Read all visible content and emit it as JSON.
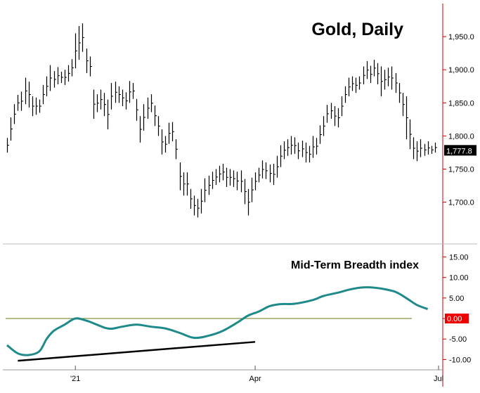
{
  "colors": {
    "frame": "#cc0000",
    "price_bars": "#000000",
    "breadth_line": "#1e8a8a",
    "zero_line": "#6b7a1a",
    "trendline": "#000000",
    "last_price_badge_bg": "#000000",
    "last_price_badge_fg": "#ffffff",
    "zero_badge_bg": "#ee0000",
    "zero_badge_fg": "#ffffff",
    "axis_text": "#000000"
  },
  "chart_data": [
    {
      "type": "ohlc",
      "title": "Gold, Daily",
      "xlabel": "",
      "ylabel": "",
      "x_range": [
        0,
        120
      ],
      "ylim": [
        1638,
        2000
      ],
      "yticks": [
        1700,
        1750,
        1800,
        1850,
        1900,
        1950
      ],
      "ytick_labels": [
        "1,700.0",
        "1,750.0",
        "1,800.0",
        "1,850.0",
        "1,900.0",
        "1,950.0"
      ],
      "last_value_label": "1,777.8",
      "last_value": 1777.8,
      "series": [
        {
          "values": [
            {
              "x": 0,
              "h": 1797,
              "l": 1775
            },
            {
              "x": 1,
              "h": 1828,
              "l": 1793
            },
            {
              "x": 2,
              "h": 1848,
              "l": 1818
            },
            {
              "x": 3,
              "h": 1862,
              "l": 1838
            },
            {
              "x": 4,
              "h": 1867,
              "l": 1838
            },
            {
              "x": 5,
              "h": 1888,
              "l": 1848
            },
            {
              "x": 6,
              "h": 1882,
              "l": 1843
            },
            {
              "x": 7,
              "h": 1860,
              "l": 1830
            },
            {
              "x": 8,
              "h": 1858,
              "l": 1832
            },
            {
              "x": 9,
              "h": 1855,
              "l": 1835
            },
            {
              "x": 10,
              "h": 1877,
              "l": 1848
            },
            {
              "x": 11,
              "h": 1890,
              "l": 1860
            },
            {
              "x": 12,
              "h": 1907,
              "l": 1868
            },
            {
              "x": 13,
              "h": 1898,
              "l": 1873
            },
            {
              "x": 14,
              "h": 1904,
              "l": 1878
            },
            {
              "x": 15,
              "h": 1897,
              "l": 1880
            },
            {
              "x": 16,
              "h": 1900,
              "l": 1877
            },
            {
              "x": 17,
              "h": 1907,
              "l": 1882
            },
            {
              "x": 18,
              "h": 1916,
              "l": 1890
            },
            {
              "x": 19,
              "h": 1955,
              "l": 1902
            },
            {
              "x": 20,
              "h": 1966,
              "l": 1915
            },
            {
              "x": 21,
              "h": 1970,
              "l": 1927
            },
            {
              "x": 22,
              "h": 1932,
              "l": 1895
            },
            {
              "x": 23,
              "h": 1920,
              "l": 1890
            },
            {
              "x": 24,
              "h": 1870,
              "l": 1826
            },
            {
              "x": 25,
              "h": 1863,
              "l": 1836
            },
            {
              "x": 26,
              "h": 1870,
              "l": 1840
            },
            {
              "x": 27,
              "h": 1865,
              "l": 1830
            },
            {
              "x": 28,
              "h": 1855,
              "l": 1810
            },
            {
              "x": 29,
              "h": 1880,
              "l": 1840
            },
            {
              "x": 30,
              "h": 1882,
              "l": 1850
            },
            {
              "x": 31,
              "h": 1875,
              "l": 1850
            },
            {
              "x": 32,
              "h": 1870,
              "l": 1845
            },
            {
              "x": 33,
              "h": 1866,
              "l": 1840
            },
            {
              "x": 34,
              "h": 1883,
              "l": 1850
            },
            {
              "x": 35,
              "h": 1880,
              "l": 1856
            },
            {
              "x": 36,
              "h": 1856,
              "l": 1823
            },
            {
              "x": 37,
              "h": 1830,
              "l": 1790
            },
            {
              "x": 38,
              "h": 1848,
              "l": 1808
            },
            {
              "x": 39,
              "h": 1858,
              "l": 1826
            },
            {
              "x": 40,
              "h": 1863,
              "l": 1836
            },
            {
              "x": 41,
              "h": 1846,
              "l": 1815
            },
            {
              "x": 42,
              "h": 1830,
              "l": 1800
            },
            {
              "x": 43,
              "h": 1810,
              "l": 1772
            },
            {
              "x": 44,
              "h": 1800,
              "l": 1775
            },
            {
              "x": 45,
              "h": 1820,
              "l": 1788
            },
            {
              "x": 46,
              "h": 1821,
              "l": 1792
            },
            {
              "x": 47,
              "h": 1795,
              "l": 1765
            },
            {
              "x": 48,
              "h": 1760,
              "l": 1718
            },
            {
              "x": 49,
              "h": 1745,
              "l": 1710
            },
            {
              "x": 50,
              "h": 1745,
              "l": 1710
            },
            {
              "x": 51,
              "h": 1720,
              "l": 1690
            },
            {
              "x": 52,
              "h": 1710,
              "l": 1680
            },
            {
              "x": 53,
              "h": 1705,
              "l": 1677
            },
            {
              "x": 54,
              "h": 1720,
              "l": 1683
            },
            {
              "x": 55,
              "h": 1736,
              "l": 1700
            },
            {
              "x": 56,
              "h": 1740,
              "l": 1711
            },
            {
              "x": 57,
              "h": 1746,
              "l": 1720
            },
            {
              "x": 58,
              "h": 1750,
              "l": 1726
            },
            {
              "x": 59,
              "h": 1755,
              "l": 1730
            },
            {
              "x": 60,
              "h": 1758,
              "l": 1733
            },
            {
              "x": 61,
              "h": 1752,
              "l": 1723
            },
            {
              "x": 62,
              "h": 1750,
              "l": 1725
            },
            {
              "x": 63,
              "h": 1748,
              "l": 1723
            },
            {
              "x": 64,
              "h": 1746,
              "l": 1718
            },
            {
              "x": 65,
              "h": 1748,
              "l": 1715
            },
            {
              "x": 66,
              "h": 1735,
              "l": 1697
            },
            {
              "x": 67,
              "h": 1720,
              "l": 1680
            },
            {
              "x": 68,
              "h": 1737,
              "l": 1700
            },
            {
              "x": 69,
              "h": 1745,
              "l": 1718
            },
            {
              "x": 70,
              "h": 1752,
              "l": 1730
            },
            {
              "x": 71,
              "h": 1763,
              "l": 1736
            },
            {
              "x": 72,
              "h": 1760,
              "l": 1735
            },
            {
              "x": 73,
              "h": 1757,
              "l": 1730
            },
            {
              "x": 74,
              "h": 1758,
              "l": 1726
            },
            {
              "x": 75,
              "h": 1770,
              "l": 1737
            },
            {
              "x": 76,
              "h": 1786,
              "l": 1753
            },
            {
              "x": 77,
              "h": 1792,
              "l": 1765
            },
            {
              "x": 78,
              "h": 1795,
              "l": 1770
            },
            {
              "x": 79,
              "h": 1800,
              "l": 1772
            },
            {
              "x": 80,
              "h": 1798,
              "l": 1773
            },
            {
              "x": 81,
              "h": 1790,
              "l": 1765
            },
            {
              "x": 82,
              "h": 1793,
              "l": 1768
            },
            {
              "x": 83,
              "h": 1790,
              "l": 1760
            },
            {
              "x": 84,
              "h": 1785,
              "l": 1760
            },
            {
              "x": 85,
              "h": 1800,
              "l": 1767
            },
            {
              "x": 86,
              "h": 1797,
              "l": 1772
            },
            {
              "x": 87,
              "h": 1816,
              "l": 1788
            },
            {
              "x": 88,
              "h": 1830,
              "l": 1800
            },
            {
              "x": 89,
              "h": 1847,
              "l": 1820
            },
            {
              "x": 90,
              "h": 1850,
              "l": 1826
            },
            {
              "x": 91,
              "h": 1845,
              "l": 1815
            },
            {
              "x": 92,
              "h": 1842,
              "l": 1813
            },
            {
              "x": 93,
              "h": 1860,
              "l": 1830
            },
            {
              "x": 94,
              "h": 1875,
              "l": 1850
            },
            {
              "x": 95,
              "h": 1888,
              "l": 1860
            },
            {
              "x": 96,
              "h": 1890,
              "l": 1868
            },
            {
              "x": 97,
              "h": 1888,
              "l": 1865
            },
            {
              "x": 98,
              "h": 1890,
              "l": 1870
            },
            {
              "x": 99,
              "h": 1905,
              "l": 1878
            },
            {
              "x": 100,
              "h": 1913,
              "l": 1886
            },
            {
              "x": 101,
              "h": 1906,
              "l": 1880
            },
            {
              "x": 102,
              "h": 1915,
              "l": 1890
            },
            {
              "x": 103,
              "h": 1910,
              "l": 1878
            },
            {
              "x": 104,
              "h": 1905,
              "l": 1860
            },
            {
              "x": 105,
              "h": 1900,
              "l": 1870
            },
            {
              "x": 106,
              "h": 1903,
              "l": 1875
            },
            {
              "x": 107,
              "h": 1905,
              "l": 1870
            },
            {
              "x": 108,
              "h": 1895,
              "l": 1865
            },
            {
              "x": 109,
              "h": 1880,
              "l": 1850
            },
            {
              "x": 110,
              "h": 1865,
              "l": 1830
            },
            {
              "x": 111,
              "h": 1860,
              "l": 1795
            },
            {
              "x": 112,
              "h": 1825,
              "l": 1780
            },
            {
              "x": 113,
              "h": 1798,
              "l": 1765
            },
            {
              "x": 114,
              "h": 1792,
              "l": 1762
            },
            {
              "x": 115,
              "h": 1795,
              "l": 1768
            },
            {
              "x": 116,
              "h": 1788,
              "l": 1770
            },
            {
              "x": 117,
              "h": 1792,
              "l": 1772
            },
            {
              "x": 118,
              "h": 1785,
              "l": 1773
            },
            {
              "x": 119,
              "h": 1790,
              "l": 1775
            }
          ]
        }
      ]
    },
    {
      "type": "line",
      "title": "Mid-Term Breadth index",
      "xlabel": "",
      "ylabel": "",
      "x_range": [
        0,
        120
      ],
      "ylim": [
        -12.5,
        18
      ],
      "yticks": [
        -10,
        -5,
        0,
        5,
        10,
        15
      ],
      "ytick_labels": [
        "-10.00",
        "-5.00",
        "0.00",
        "5.00",
        "10.00",
        "15.00"
      ],
      "highlight_label": "0.00",
      "reference_line": 0,
      "x_tick_labels": [
        {
          "label": "'21",
          "x": 19
        },
        {
          "label": "Apr",
          "x": 69
        },
        {
          "label": "Jul",
          "x": 120
        }
      ],
      "series": [
        {
          "x": [
            0,
            3,
            6,
            9,
            11,
            13,
            16,
            19,
            22,
            25,
            27,
            29,
            32,
            36,
            40,
            44,
            48,
            52,
            56,
            60,
            64,
            67,
            70,
            73,
            76,
            80,
            85,
            88,
            92,
            95,
            98,
            101,
            104,
            108,
            111,
            114,
            117
          ],
          "y": [
            -6.5,
            -8.5,
            -8.9,
            -8.0,
            -5.0,
            -3.0,
            -1.5,
            0.0,
            -0.5,
            -1.5,
            -2.2,
            -2.5,
            -2.0,
            -1.5,
            -2.0,
            -2.4,
            -3.5,
            -4.7,
            -4.2,
            -3.0,
            -1.0,
            0.7,
            1.7,
            3.0,
            3.5,
            3.6,
            4.5,
            5.5,
            6.3,
            7.0,
            7.5,
            7.6,
            7.3,
            6.5,
            5.0,
            3.3,
            2.3
          ]
        }
      ],
      "annotations": [
        {
          "type": "trendline",
          "x1": 3,
          "y1": -10.3,
          "x2": 69,
          "y2": -5.7
        }
      ]
    }
  ]
}
